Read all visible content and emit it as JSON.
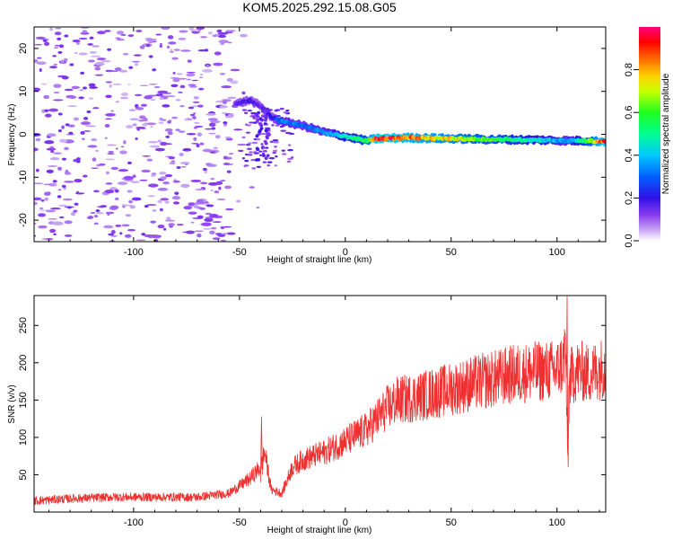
{
  "page_title": "KOM5.2025.292.15.08.G05",
  "chart_data": [
    {
      "type": "heatmap",
      "title": "KOM5.2025.292.15.08.G05",
      "xlabel": "Height of straight line (km)",
      "ylabel": "Frequency (Hz)",
      "xlim": [
        -147,
        123
      ],
      "ylim": [
        -25,
        25
      ],
      "xticks": [
        -100,
        -50,
        0,
        50,
        100
      ],
      "yticks": [
        -20,
        -10,
        0,
        10,
        20
      ],
      "grid": false,
      "colorbar": {
        "label": "Normalized spectral amplitude",
        "range": [
          0,
          1
        ],
        "ticks": [
          0.0,
          0.2,
          0.4,
          0.6,
          0.8
        ],
        "tick_labels": [
          "0.0",
          "0.2",
          "0.4",
          "0.6",
          "0.8"
        ],
        "colormap": "rainbow (purple-blue-cyan-green-yellow-orange-red-magenta)"
      },
      "noise_region": {
        "x_range": [
          -147,
          -52
        ],
        "freq_range": [
          -25,
          25
        ],
        "level": "low (0.0-0.15)"
      },
      "signal_track": {
        "description": "Doppler frequency trace of the signal",
        "points": [
          {
            "x": -52,
            "freq": 7,
            "amplitude": 0.15
          },
          {
            "x": -45,
            "freq": 8,
            "amplitude": 0.2
          },
          {
            "x": -40,
            "freq": 6.5,
            "amplitude": 0.15
          },
          {
            "x": -35,
            "freq": 4,
            "amplitude": 0.2
          },
          {
            "x": -30,
            "freq": 3,
            "amplitude": 0.35
          },
          {
            "x": -20,
            "freq": 2,
            "amplitude": 0.3
          },
          {
            "x": -10,
            "freq": 0.5,
            "amplitude": 0.35
          },
          {
            "x": 0,
            "freq": -0.5,
            "amplitude": 0.45
          },
          {
            "x": 10,
            "freq": -1.5,
            "amplitude": 0.6
          },
          {
            "x": 15,
            "freq": -1,
            "amplitude": 0.95
          },
          {
            "x": 30,
            "freq": -0.8,
            "amplitude": 0.85
          },
          {
            "x": 50,
            "freq": -1,
            "amplitude": 0.75
          },
          {
            "x": 70,
            "freq": -1.2,
            "amplitude": 0.6
          },
          {
            "x": 90,
            "freq": -1.3,
            "amplitude": 0.45
          },
          {
            "x": 105,
            "freq": -1.5,
            "amplitude": 0.35
          },
          {
            "x": 112,
            "freq": -1.5,
            "amplitude": 0.5
          },
          {
            "x": 123,
            "freq": -1.7,
            "amplitude": 0.95
          }
        ]
      }
    },
    {
      "type": "line",
      "title": "",
      "xlabel": "Height of straight line (km)",
      "ylabel": "SNR (v/v)",
      "xlim": [
        -147,
        123
      ],
      "ylim": [
        0,
        290
      ],
      "xticks": [
        -100,
        -50,
        0,
        50,
        100
      ],
      "yticks": [
        50,
        100,
        150,
        200,
        250
      ],
      "grid": false,
      "series": [
        {
          "name": "SNR",
          "color": "#f03030",
          "x": [
            -147,
            -130,
            -110,
            -90,
            -70,
            -55,
            -45,
            -40,
            -38,
            -35,
            -30,
            -25,
            -20,
            -10,
            0,
            10,
            15,
            20,
            25,
            30,
            40,
            50,
            60,
            70,
            80,
            90,
            100,
            103,
            104,
            105,
            106,
            110,
            115,
            123
          ],
          "y": [
            15,
            18,
            20,
            20,
            20,
            25,
            45,
            60,
            80,
            30,
            25,
            60,
            70,
            80,
            95,
            110,
            125,
            140,
            150,
            152,
            158,
            165,
            172,
            178,
            185,
            188,
            190,
            200,
            230,
            70,
            180,
            190,
            185,
            195
          ]
        }
      ]
    }
  ]
}
